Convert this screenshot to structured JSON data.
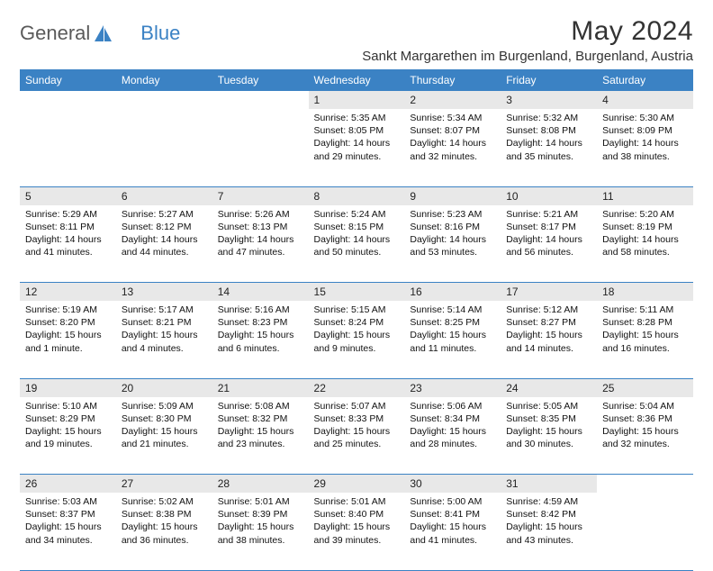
{
  "logo": {
    "text1": "General",
    "text2": "Blue"
  },
  "title": "May 2024",
  "location": "Sankt Margarethen im Burgenland, Burgenland, Austria",
  "colors": {
    "accent": "#3b82c4",
    "daynum_bg": "#e8e8e8"
  },
  "days_of_week": [
    "Sunday",
    "Monday",
    "Tuesday",
    "Wednesday",
    "Thursday",
    "Friday",
    "Saturday"
  ],
  "weeks": [
    [
      null,
      null,
      null,
      {
        "n": "1",
        "sr": "5:35 AM",
        "ss": "8:05 PM",
        "dl": "14 hours and 29 minutes."
      },
      {
        "n": "2",
        "sr": "5:34 AM",
        "ss": "8:07 PM",
        "dl": "14 hours and 32 minutes."
      },
      {
        "n": "3",
        "sr": "5:32 AM",
        "ss": "8:08 PM",
        "dl": "14 hours and 35 minutes."
      },
      {
        "n": "4",
        "sr": "5:30 AM",
        "ss": "8:09 PM",
        "dl": "14 hours and 38 minutes."
      }
    ],
    [
      {
        "n": "5",
        "sr": "5:29 AM",
        "ss": "8:11 PM",
        "dl": "14 hours and 41 minutes."
      },
      {
        "n": "6",
        "sr": "5:27 AM",
        "ss": "8:12 PM",
        "dl": "14 hours and 44 minutes."
      },
      {
        "n": "7",
        "sr": "5:26 AM",
        "ss": "8:13 PM",
        "dl": "14 hours and 47 minutes."
      },
      {
        "n": "8",
        "sr": "5:24 AM",
        "ss": "8:15 PM",
        "dl": "14 hours and 50 minutes."
      },
      {
        "n": "9",
        "sr": "5:23 AM",
        "ss": "8:16 PM",
        "dl": "14 hours and 53 minutes."
      },
      {
        "n": "10",
        "sr": "5:21 AM",
        "ss": "8:17 PM",
        "dl": "14 hours and 56 minutes."
      },
      {
        "n": "11",
        "sr": "5:20 AM",
        "ss": "8:19 PM",
        "dl": "14 hours and 58 minutes."
      }
    ],
    [
      {
        "n": "12",
        "sr": "5:19 AM",
        "ss": "8:20 PM",
        "dl": "15 hours and 1 minute."
      },
      {
        "n": "13",
        "sr": "5:17 AM",
        "ss": "8:21 PM",
        "dl": "15 hours and 4 minutes."
      },
      {
        "n": "14",
        "sr": "5:16 AM",
        "ss": "8:23 PM",
        "dl": "15 hours and 6 minutes."
      },
      {
        "n": "15",
        "sr": "5:15 AM",
        "ss": "8:24 PM",
        "dl": "15 hours and 9 minutes."
      },
      {
        "n": "16",
        "sr": "5:14 AM",
        "ss": "8:25 PM",
        "dl": "15 hours and 11 minutes."
      },
      {
        "n": "17",
        "sr": "5:12 AM",
        "ss": "8:27 PM",
        "dl": "15 hours and 14 minutes."
      },
      {
        "n": "18",
        "sr": "5:11 AM",
        "ss": "8:28 PM",
        "dl": "15 hours and 16 minutes."
      }
    ],
    [
      {
        "n": "19",
        "sr": "5:10 AM",
        "ss": "8:29 PM",
        "dl": "15 hours and 19 minutes."
      },
      {
        "n": "20",
        "sr": "5:09 AM",
        "ss": "8:30 PM",
        "dl": "15 hours and 21 minutes."
      },
      {
        "n": "21",
        "sr": "5:08 AM",
        "ss": "8:32 PM",
        "dl": "15 hours and 23 minutes."
      },
      {
        "n": "22",
        "sr": "5:07 AM",
        "ss": "8:33 PM",
        "dl": "15 hours and 25 minutes."
      },
      {
        "n": "23",
        "sr": "5:06 AM",
        "ss": "8:34 PM",
        "dl": "15 hours and 28 minutes."
      },
      {
        "n": "24",
        "sr": "5:05 AM",
        "ss": "8:35 PM",
        "dl": "15 hours and 30 minutes."
      },
      {
        "n": "25",
        "sr": "5:04 AM",
        "ss": "8:36 PM",
        "dl": "15 hours and 32 minutes."
      }
    ],
    [
      {
        "n": "26",
        "sr": "5:03 AM",
        "ss": "8:37 PM",
        "dl": "15 hours and 34 minutes."
      },
      {
        "n": "27",
        "sr": "5:02 AM",
        "ss": "8:38 PM",
        "dl": "15 hours and 36 minutes."
      },
      {
        "n": "28",
        "sr": "5:01 AM",
        "ss": "8:39 PM",
        "dl": "15 hours and 38 minutes."
      },
      {
        "n": "29",
        "sr": "5:01 AM",
        "ss": "8:40 PM",
        "dl": "15 hours and 39 minutes."
      },
      {
        "n": "30",
        "sr": "5:00 AM",
        "ss": "8:41 PM",
        "dl": "15 hours and 41 minutes."
      },
      {
        "n": "31",
        "sr": "4:59 AM",
        "ss": "8:42 PM",
        "dl": "15 hours and 43 minutes."
      },
      null
    ]
  ],
  "labels": {
    "sunrise": "Sunrise:",
    "sunset": "Sunset:",
    "daylight": "Daylight:"
  }
}
